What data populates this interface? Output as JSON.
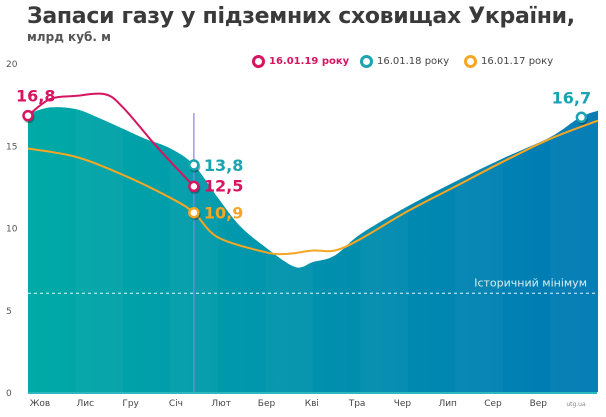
{
  "header": {
    "title": "Запаси газу у підземних сховищах України,",
    "subtitle": "млрд куб. м"
  },
  "source": "utg.ua",
  "colors": {
    "red": "#d6145f",
    "teal": "#1aa3b0",
    "orange": "#f5a623",
    "area_start": "#00aaa6",
    "area_end": "#0079b5",
    "marker_line": "#8f7fe6"
  },
  "chart_data": {
    "type": "area",
    "title": "Запаси газу у підземних сховищах України,",
    "subtitle": "млрд куб. м",
    "ylim": [
      0,
      20
    ],
    "yticks": [
      "0",
      "5",
      "10",
      "15",
      "20"
    ],
    "xticks": [
      "Жов",
      "Лис",
      "Гру",
      "Січ",
      "Лют",
      "Бер",
      "Кві",
      "Тра",
      "Чер",
      "Лип",
      "Сер",
      "Вер"
    ],
    "legend_position": "top",
    "grid": false,
    "reference_line": {
      "label": "Історичний мінімум",
      "value": 6
    },
    "marker_date": "16.01",
    "series": [
      {
        "name": "16.01.18 року",
        "kind": "area",
        "color": "#1aa3b0",
        "points": [
          [
            "01.10",
            16.9
          ],
          [
            "15.10",
            17.3
          ],
          [
            "01.11",
            17.2
          ],
          [
            "15.11",
            16.7
          ],
          [
            "01.12",
            16.0
          ],
          [
            "15.12",
            15.4
          ],
          [
            "01.01",
            14.8
          ],
          [
            "16.01",
            13.8
          ],
          [
            "01.02",
            11.8
          ],
          [
            "15.02",
            10.1
          ],
          [
            "01.03",
            8.8
          ],
          [
            "20.03",
            7.6
          ],
          [
            "01.04",
            7.9
          ],
          [
            "15.04",
            8.3
          ],
          [
            "01.05",
            9.6
          ],
          [
            "01.06",
            11.3
          ],
          [
            "01.07",
            12.8
          ],
          [
            "01.08",
            14.2
          ],
          [
            "01.09",
            15.5
          ],
          [
            "20.09",
            16.7
          ],
          [
            "01.10",
            17.1
          ]
        ],
        "labels": [
          {
            "date": "16.01",
            "text": "13,8"
          },
          {
            "date": "20.09",
            "text": "16,7"
          }
        ]
      },
      {
        "name": "16.01.19 року",
        "kind": "line",
        "color": "#d6145f",
        "points": [
          [
            "01.10",
            16.8
          ],
          [
            "15.10",
            17.8
          ],
          [
            "01.11",
            18.0
          ],
          [
            "20.11",
            18.1
          ],
          [
            "01.12",
            17.3
          ],
          [
            "20.12",
            15.2
          ],
          [
            "01.01",
            14.0
          ],
          [
            "16.01",
            12.5
          ]
        ],
        "labels": [
          {
            "date": "01.10",
            "text": "16,8"
          },
          {
            "date": "16.01",
            "text": "12,5"
          }
        ]
      },
      {
        "name": "16.01.17 року",
        "kind": "line",
        "color": "#f5a623",
        "points": [
          [
            "01.10",
            14.8
          ],
          [
            "01.11",
            14.3
          ],
          [
            "01.12",
            13.2
          ],
          [
            "01.01",
            11.8
          ],
          [
            "16.01",
            10.9
          ],
          [
            "01.02",
            9.4
          ],
          [
            "01.03",
            8.5
          ],
          [
            "15.03",
            8.4
          ],
          [
            "01.04",
            8.6
          ],
          [
            "15.04",
            8.6
          ],
          [
            "01.05",
            9.3
          ],
          [
            "01.06",
            11.0
          ],
          [
            "01.07",
            12.5
          ],
          [
            "01.08",
            14.0
          ],
          [
            "01.09",
            15.4
          ],
          [
            "01.10",
            16.5
          ]
        ],
        "labels": [
          {
            "date": "16.01",
            "text": "10,9"
          }
        ]
      }
    ]
  }
}
